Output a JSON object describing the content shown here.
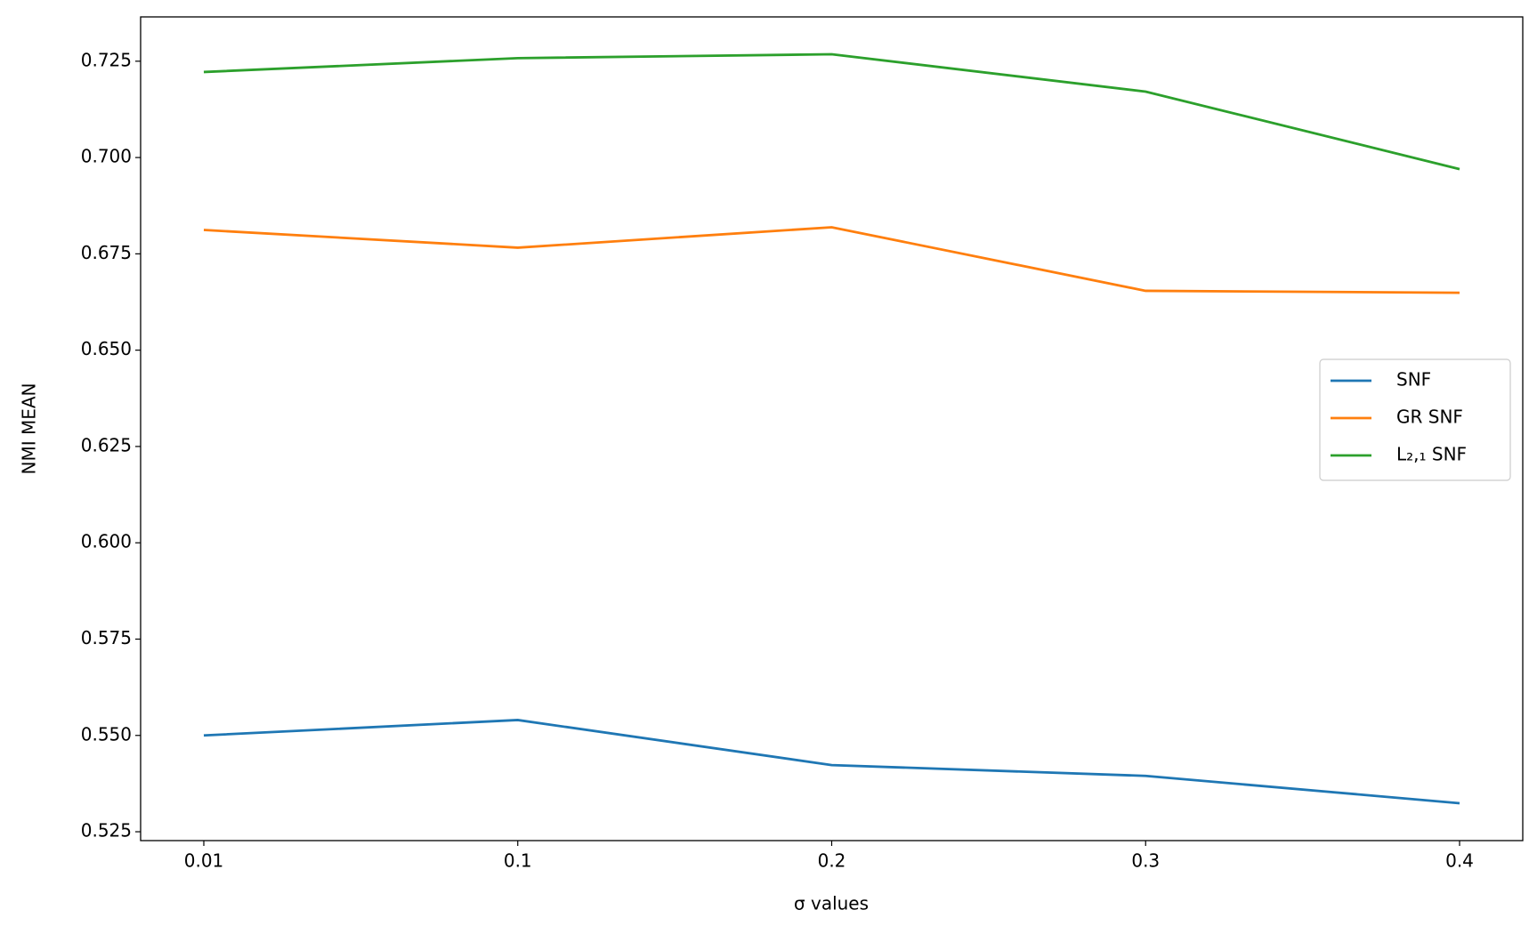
{
  "chart_data": {
    "type": "line",
    "xlabel": "σ values",
    "ylabel": "NMI MEAN",
    "categories": [
      "0.01",
      "0.1",
      "0.2",
      "0.3",
      "0.4"
    ],
    "series": [
      {
        "name": "SNF",
        "color": "#1f77b4",
        "values": [
          0.55,
          0.554,
          0.5423,
          0.5395,
          0.5324
        ]
      },
      {
        "name": "GR SNF",
        "color": "#ff7f0e",
        "values": [
          0.6812,
          0.6766,
          0.6819,
          0.6654,
          0.6649
        ]
      },
      {
        "name": "L₂,₁ SNF",
        "color": "#2ca02c",
        "values": [
          0.7222,
          0.7258,
          0.7268,
          0.7171,
          0.697
        ]
      }
    ],
    "ylim": [
      0.5227,
      0.7365
    ],
    "yticks": [
      0.525,
      {
        "value": 0.55,
        "label": "0.550"
      },
      0.575,
      {
        "value": 0.6,
        "label": "0.600"
      },
      0.625,
      {
        "value": 0.65,
        "label": "0.650"
      },
      0.675,
      {
        "value": 0.7,
        "label": "0.700"
      },
      0.725
    ],
    "grid": false,
    "legend": "right"
  }
}
